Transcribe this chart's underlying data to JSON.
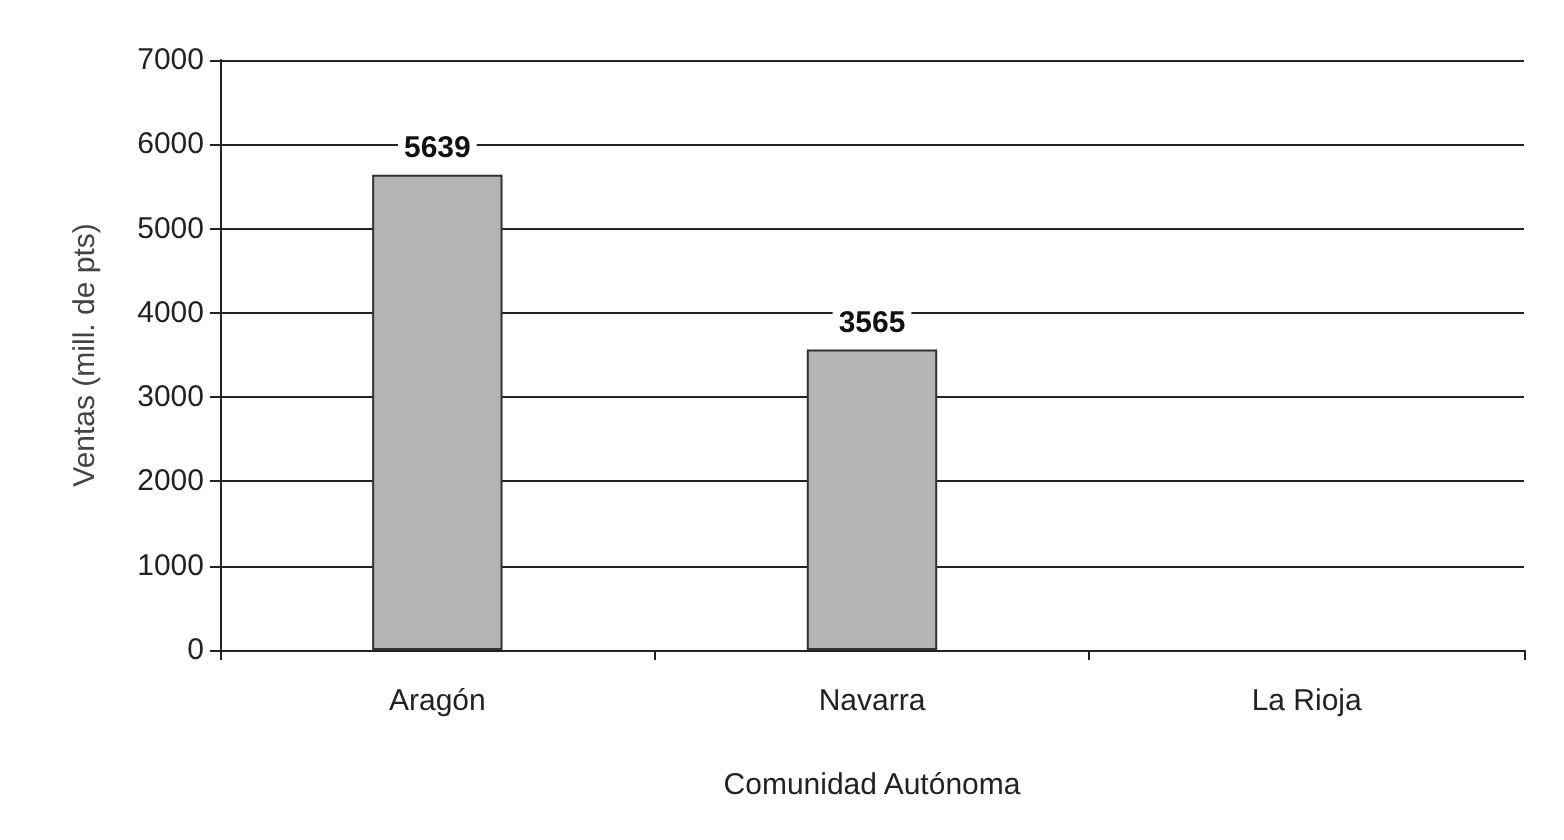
{
  "chart_data": {
    "type": "bar",
    "xlabel": "Comunidad Autónoma",
    "ylabel": "Ventas (mill. de pts)",
    "categories": [
      "Aragón",
      "Navarra",
      "La Rioja"
    ],
    "values": [
      5639,
      3565,
      null
    ],
    "color": "#b4b4b4",
    "ylim": [
      0,
      7000
    ],
    "yticks": [
      0,
      1000,
      2000,
      3000,
      4000,
      5000,
      6000,
      7000
    ],
    "grid": "y",
    "data_labels": true
  }
}
